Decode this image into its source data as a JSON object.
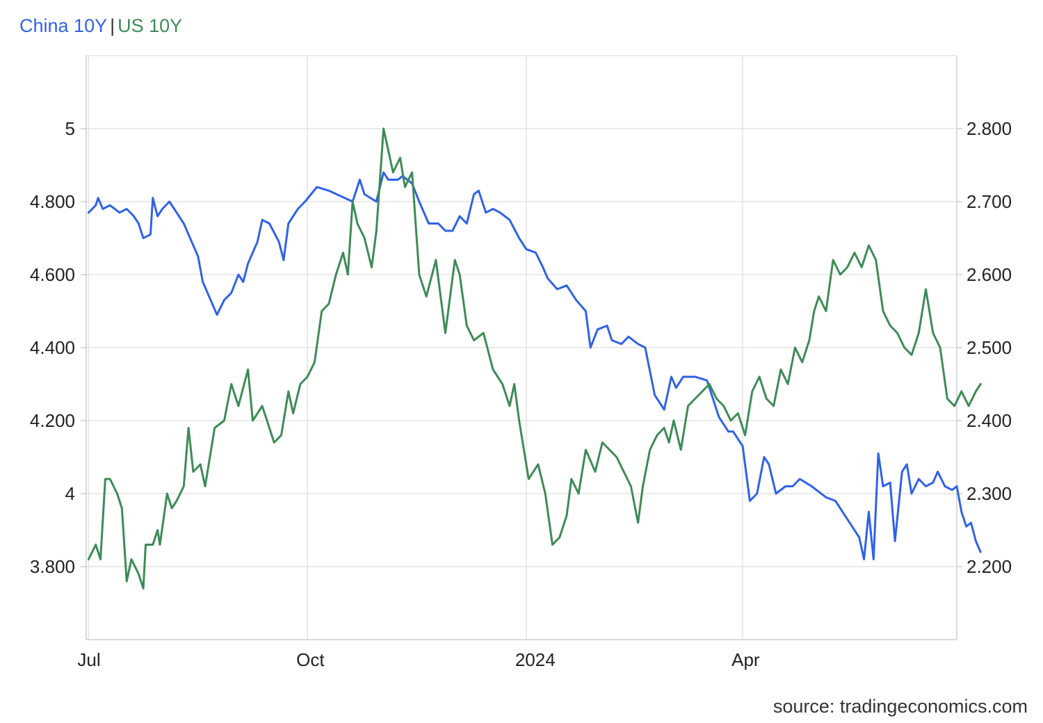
{
  "legend": {
    "separator": "|"
  },
  "source": "source: tradingeconomics.com",
  "colors": {
    "china": "#2f62e8",
    "us": "#3d8b57",
    "grid": "#e3e3e3",
    "axis": "#cfcfcf"
  },
  "chart_data": {
    "type": "line",
    "x_domain": [
      "2023-06-30",
      "2024-06-30"
    ],
    "x_ticks": [
      {
        "date": "2023-07-01",
        "label": "Jul"
      },
      {
        "date": "2023-10-01",
        "label": "Oct"
      },
      {
        "date": "2024-01-01",
        "label": "2024"
      },
      {
        "date": "2024-04-01",
        "label": "Apr"
      }
    ],
    "left_axis": {
      "ylim": [
        3.6,
        5.2
      ],
      "ticks": [
        3.8,
        4.0,
        4.2,
        4.4,
        4.6,
        4.8,
        5.0
      ],
      "tick_labels": [
        "3.800",
        "4",
        "4.200",
        "4.400",
        "4.600",
        "4.800",
        "5"
      ]
    },
    "right_axis": {
      "ylim": [
        2.1,
        2.9
      ],
      "ticks": [
        2.2,
        2.3,
        2.4,
        2.5,
        2.6,
        2.7,
        2.8
      ],
      "tick_labels": [
        "2.200",
        "2.300",
        "2.400",
        "2.500",
        "2.600",
        "2.700",
        "2.800"
      ]
    },
    "grid": true,
    "series": [
      {
        "name": "China 10Y",
        "axis": "left",
        "color": "#2f62e8",
        "points": [
          [
            "2023-07-01",
            4.77
          ],
          [
            "2023-07-04",
            4.79
          ],
          [
            "2023-07-05",
            4.81
          ],
          [
            "2023-07-07",
            4.78
          ],
          [
            "2023-07-10",
            4.79
          ],
          [
            "2023-07-12",
            4.78
          ],
          [
            "2023-07-14",
            4.77
          ],
          [
            "2023-07-17",
            4.78
          ],
          [
            "2023-07-20",
            4.76
          ],
          [
            "2023-07-22",
            4.74
          ],
          [
            "2023-07-24",
            4.7
          ],
          [
            "2023-07-27",
            4.71
          ],
          [
            "2023-07-28",
            4.81
          ],
          [
            "2023-07-30",
            4.76
          ],
          [
            "2023-08-01",
            4.78
          ],
          [
            "2023-08-04",
            4.8
          ],
          [
            "2023-08-06",
            4.78
          ],
          [
            "2023-08-08",
            4.76
          ],
          [
            "2023-08-10",
            4.74
          ],
          [
            "2023-08-12",
            4.71
          ],
          [
            "2023-08-16",
            4.65
          ],
          [
            "2023-08-18",
            4.58
          ],
          [
            "2023-08-20",
            4.55
          ],
          [
            "2023-08-24",
            4.49
          ],
          [
            "2023-08-27",
            4.53
          ],
          [
            "2023-08-30",
            4.55
          ],
          [
            "2023-09-02",
            4.6
          ],
          [
            "2023-09-04",
            4.58
          ],
          [
            "2023-09-06",
            4.63
          ],
          [
            "2023-09-10",
            4.69
          ],
          [
            "2023-09-12",
            4.75
          ],
          [
            "2023-09-15",
            4.74
          ],
          [
            "2023-09-19",
            4.69
          ],
          [
            "2023-09-21",
            4.64
          ],
          [
            "2023-09-23",
            4.74
          ],
          [
            "2023-09-27",
            4.78
          ],
          [
            "2023-09-30",
            4.8
          ],
          [
            "2023-10-05",
            4.84
          ],
          [
            "2023-10-10",
            4.83
          ],
          [
            "2023-10-20",
            4.8
          ],
          [
            "2023-10-23",
            4.86
          ],
          [
            "2023-10-25",
            4.82
          ],
          [
            "2023-10-30",
            4.8
          ],
          [
            "2023-11-02",
            4.88
          ],
          [
            "2023-11-04",
            4.86
          ],
          [
            "2023-11-08",
            4.86
          ],
          [
            "2023-11-10",
            4.87
          ],
          [
            "2023-11-14",
            4.85
          ],
          [
            "2023-11-17",
            4.8
          ],
          [
            "2023-11-21",
            4.74
          ],
          [
            "2023-11-25",
            4.74
          ],
          [
            "2023-11-28",
            4.72
          ],
          [
            "2023-12-01",
            4.72
          ],
          [
            "2023-12-04",
            4.76
          ],
          [
            "2023-12-07",
            4.74
          ],
          [
            "2023-12-10",
            4.82
          ],
          [
            "2023-12-12",
            4.83
          ],
          [
            "2023-12-15",
            4.77
          ],
          [
            "2023-12-18",
            4.78
          ],
          [
            "2023-12-21",
            4.77
          ],
          [
            "2023-12-25",
            4.75
          ],
          [
            "2023-12-29",
            4.7
          ],
          [
            "2024-01-01",
            4.67
          ],
          [
            "2024-01-05",
            4.66
          ],
          [
            "2024-01-08",
            4.62
          ],
          [
            "2024-01-10",
            4.59
          ],
          [
            "2024-01-14",
            4.56
          ],
          [
            "2024-01-18",
            4.57
          ],
          [
            "2024-01-22",
            4.53
          ],
          [
            "2024-01-26",
            4.5
          ],
          [
            "2024-01-28",
            4.4
          ],
          [
            "2024-01-31",
            4.45
          ],
          [
            "2024-02-04",
            4.46
          ],
          [
            "2024-02-06",
            4.42
          ],
          [
            "2024-02-10",
            4.41
          ],
          [
            "2024-02-13",
            4.43
          ],
          [
            "2024-02-17",
            4.41
          ],
          [
            "2024-02-20",
            4.4
          ],
          [
            "2024-02-24",
            4.27
          ],
          [
            "2024-02-28",
            4.23
          ],
          [
            "2024-03-02",
            4.32
          ],
          [
            "2024-03-04",
            4.29
          ],
          [
            "2024-03-07",
            4.32
          ],
          [
            "2024-03-12",
            4.32
          ],
          [
            "2024-03-17",
            4.31
          ],
          [
            "2024-03-22",
            4.21
          ],
          [
            "2024-03-26",
            4.17
          ],
          [
            "2024-03-28",
            4.17
          ],
          [
            "2024-04-01",
            4.13
          ],
          [
            "2024-04-04",
            3.98
          ],
          [
            "2024-04-07",
            4.0
          ],
          [
            "2024-04-10",
            4.1
          ],
          [
            "2024-04-12",
            4.08
          ],
          [
            "2024-04-15",
            4.0
          ],
          [
            "2024-04-19",
            4.02
          ],
          [
            "2024-04-22",
            4.02
          ],
          [
            "2024-04-25",
            4.04
          ],
          [
            "2024-04-30",
            4.02
          ],
          [
            "2024-05-06",
            3.99
          ],
          [
            "2024-05-10",
            3.98
          ],
          [
            "2024-05-15",
            3.93
          ],
          [
            "2024-05-20",
            3.88
          ],
          [
            "2024-05-22",
            3.82
          ],
          [
            "2024-05-24",
            3.95
          ],
          [
            "2024-05-26",
            3.82
          ],
          [
            "2024-05-28",
            4.11
          ],
          [
            "2024-05-30",
            4.02
          ],
          [
            "2024-06-02",
            4.03
          ],
          [
            "2024-06-04",
            3.87
          ],
          [
            "2024-06-07",
            4.06
          ],
          [
            "2024-06-09",
            4.08
          ],
          [
            "2024-06-11",
            4.0
          ],
          [
            "2024-06-14",
            4.04
          ],
          [
            "2024-06-17",
            4.02
          ],
          [
            "2024-06-20",
            4.03
          ],
          [
            "2024-06-22",
            4.06
          ],
          [
            "2024-06-25",
            4.02
          ],
          [
            "2024-06-28",
            4.01
          ],
          [
            "2024-06-30",
            4.02
          ],
          [
            "2024-07-02",
            3.95
          ],
          [
            "2024-07-04",
            3.91
          ],
          [
            "2024-07-06",
            3.92
          ],
          [
            "2024-07-08",
            3.87
          ],
          [
            "2024-07-10",
            3.84
          ]
        ]
      },
      {
        "name": "US 10Y",
        "axis": "right",
        "color": "#3d8b57",
        "points": [
          [
            "2023-07-01",
            2.21
          ],
          [
            "2023-07-04",
            2.23
          ],
          [
            "2023-07-06",
            2.21
          ],
          [
            "2023-07-08",
            2.32
          ],
          [
            "2023-07-10",
            2.32
          ],
          [
            "2023-07-13",
            2.3
          ],
          [
            "2023-07-15",
            2.28
          ],
          [
            "2023-07-17",
            2.18
          ],
          [
            "2023-07-19",
            2.21
          ],
          [
            "2023-07-22",
            2.19
          ],
          [
            "2023-07-24",
            2.17
          ],
          [
            "2023-07-25",
            2.23
          ],
          [
            "2023-07-28",
            2.23
          ],
          [
            "2023-07-30",
            2.25
          ],
          [
            "2023-07-31",
            2.23
          ],
          [
            "2023-08-03",
            2.3
          ],
          [
            "2023-08-05",
            2.28
          ],
          [
            "2023-08-07",
            2.29
          ],
          [
            "2023-08-10",
            2.31
          ],
          [
            "2023-08-12",
            2.39
          ],
          [
            "2023-08-14",
            2.33
          ],
          [
            "2023-08-17",
            2.34
          ],
          [
            "2023-08-19",
            2.31
          ],
          [
            "2023-08-23",
            2.39
          ],
          [
            "2023-08-27",
            2.4
          ],
          [
            "2023-08-30",
            2.45
          ],
          [
            "2023-09-02",
            2.42
          ],
          [
            "2023-09-06",
            2.47
          ],
          [
            "2023-09-08",
            2.4
          ],
          [
            "2023-09-12",
            2.42
          ],
          [
            "2023-09-14",
            2.4
          ],
          [
            "2023-09-17",
            2.37
          ],
          [
            "2023-09-20",
            2.38
          ],
          [
            "2023-09-23",
            2.44
          ],
          [
            "2023-09-25",
            2.41
          ],
          [
            "2023-09-28",
            2.45
          ],
          [
            "2023-10-01",
            2.46
          ],
          [
            "2023-10-04",
            2.48
          ],
          [
            "2023-10-07",
            2.55
          ],
          [
            "2023-10-10",
            2.56
          ],
          [
            "2023-10-13",
            2.6
          ],
          [
            "2023-10-16",
            2.63
          ],
          [
            "2023-10-18",
            2.6
          ],
          [
            "2023-10-20",
            2.7
          ],
          [
            "2023-10-22",
            2.67
          ],
          [
            "2023-10-25",
            2.65
          ],
          [
            "2023-10-28",
            2.61
          ],
          [
            "2023-10-30",
            2.66
          ],
          [
            "2023-11-02",
            2.8
          ],
          [
            "2023-11-06",
            2.74
          ],
          [
            "2023-11-09",
            2.76
          ],
          [
            "2023-11-11",
            2.72
          ],
          [
            "2023-11-14",
            2.74
          ],
          [
            "2023-11-17",
            2.6
          ],
          [
            "2023-11-20",
            2.57
          ],
          [
            "2023-11-24",
            2.62
          ],
          [
            "2023-11-28",
            2.52
          ],
          [
            "2023-12-02",
            2.62
          ],
          [
            "2023-12-04",
            2.6
          ],
          [
            "2023-12-07",
            2.53
          ],
          [
            "2023-12-10",
            2.51
          ],
          [
            "2023-12-14",
            2.52
          ],
          [
            "2023-12-18",
            2.47
          ],
          [
            "2023-12-22",
            2.45
          ],
          [
            "2023-12-25",
            2.42
          ],
          [
            "2023-12-27",
            2.45
          ],
          [
            "2023-12-29",
            2.4
          ],
          [
            "2024-01-02",
            2.32
          ],
          [
            "2024-01-04",
            2.33
          ],
          [
            "2024-01-06",
            2.34
          ],
          [
            "2024-01-09",
            2.3
          ],
          [
            "2024-01-12",
            2.23
          ],
          [
            "2024-01-15",
            2.24
          ],
          [
            "2024-01-18",
            2.27
          ],
          [
            "2024-01-20",
            2.32
          ],
          [
            "2024-01-23",
            2.3
          ],
          [
            "2024-01-26",
            2.36
          ],
          [
            "2024-01-30",
            2.33
          ],
          [
            "2024-02-02",
            2.37
          ],
          [
            "2024-02-05",
            2.36
          ],
          [
            "2024-02-08",
            2.35
          ],
          [
            "2024-02-11",
            2.33
          ],
          [
            "2024-02-14",
            2.31
          ],
          [
            "2024-02-17",
            2.26
          ],
          [
            "2024-02-19",
            2.31
          ],
          [
            "2024-02-22",
            2.36
          ],
          [
            "2024-02-25",
            2.38
          ],
          [
            "2024-02-28",
            2.39
          ],
          [
            "2024-03-01",
            2.37
          ],
          [
            "2024-03-03",
            2.4
          ],
          [
            "2024-03-06",
            2.36
          ],
          [
            "2024-03-09",
            2.42
          ],
          [
            "2024-03-12",
            2.43
          ],
          [
            "2024-03-15",
            2.44
          ],
          [
            "2024-03-18",
            2.45
          ],
          [
            "2024-03-21",
            2.43
          ],
          [
            "2024-03-24",
            2.42
          ],
          [
            "2024-03-27",
            2.4
          ],
          [
            "2024-03-30",
            2.41
          ],
          [
            "2024-04-02",
            2.38
          ],
          [
            "2024-04-05",
            2.44
          ],
          [
            "2024-04-08",
            2.46
          ],
          [
            "2024-04-11",
            2.43
          ],
          [
            "2024-04-14",
            2.42
          ],
          [
            "2024-04-17",
            2.47
          ],
          [
            "2024-04-20",
            2.45
          ],
          [
            "2024-04-23",
            2.5
          ],
          [
            "2024-04-26",
            2.48
          ],
          [
            "2024-04-29",
            2.51
          ],
          [
            "2024-05-01",
            2.55
          ],
          [
            "2024-05-03",
            2.57
          ],
          [
            "2024-05-06",
            2.55
          ],
          [
            "2024-05-09",
            2.62
          ],
          [
            "2024-05-12",
            2.6
          ],
          [
            "2024-05-15",
            2.61
          ],
          [
            "2024-05-18",
            2.63
          ],
          [
            "2024-05-21",
            2.61
          ],
          [
            "2024-05-24",
            2.64
          ],
          [
            "2024-05-27",
            2.62
          ],
          [
            "2024-05-30",
            2.55
          ],
          [
            "2024-06-02",
            2.53
          ],
          [
            "2024-06-05",
            2.52
          ],
          [
            "2024-06-08",
            2.5
          ],
          [
            "2024-06-11",
            2.49
          ],
          [
            "2024-06-14",
            2.52
          ],
          [
            "2024-06-17",
            2.58
          ],
          [
            "2024-06-20",
            2.52
          ],
          [
            "2024-06-23",
            2.5
          ],
          [
            "2024-06-26",
            2.43
          ],
          [
            "2024-06-29",
            2.42
          ],
          [
            "2024-07-02",
            2.44
          ],
          [
            "2024-07-05",
            2.42
          ],
          [
            "2024-07-08",
            2.44
          ],
          [
            "2024-07-10",
            2.45
          ]
        ]
      }
    ]
  }
}
